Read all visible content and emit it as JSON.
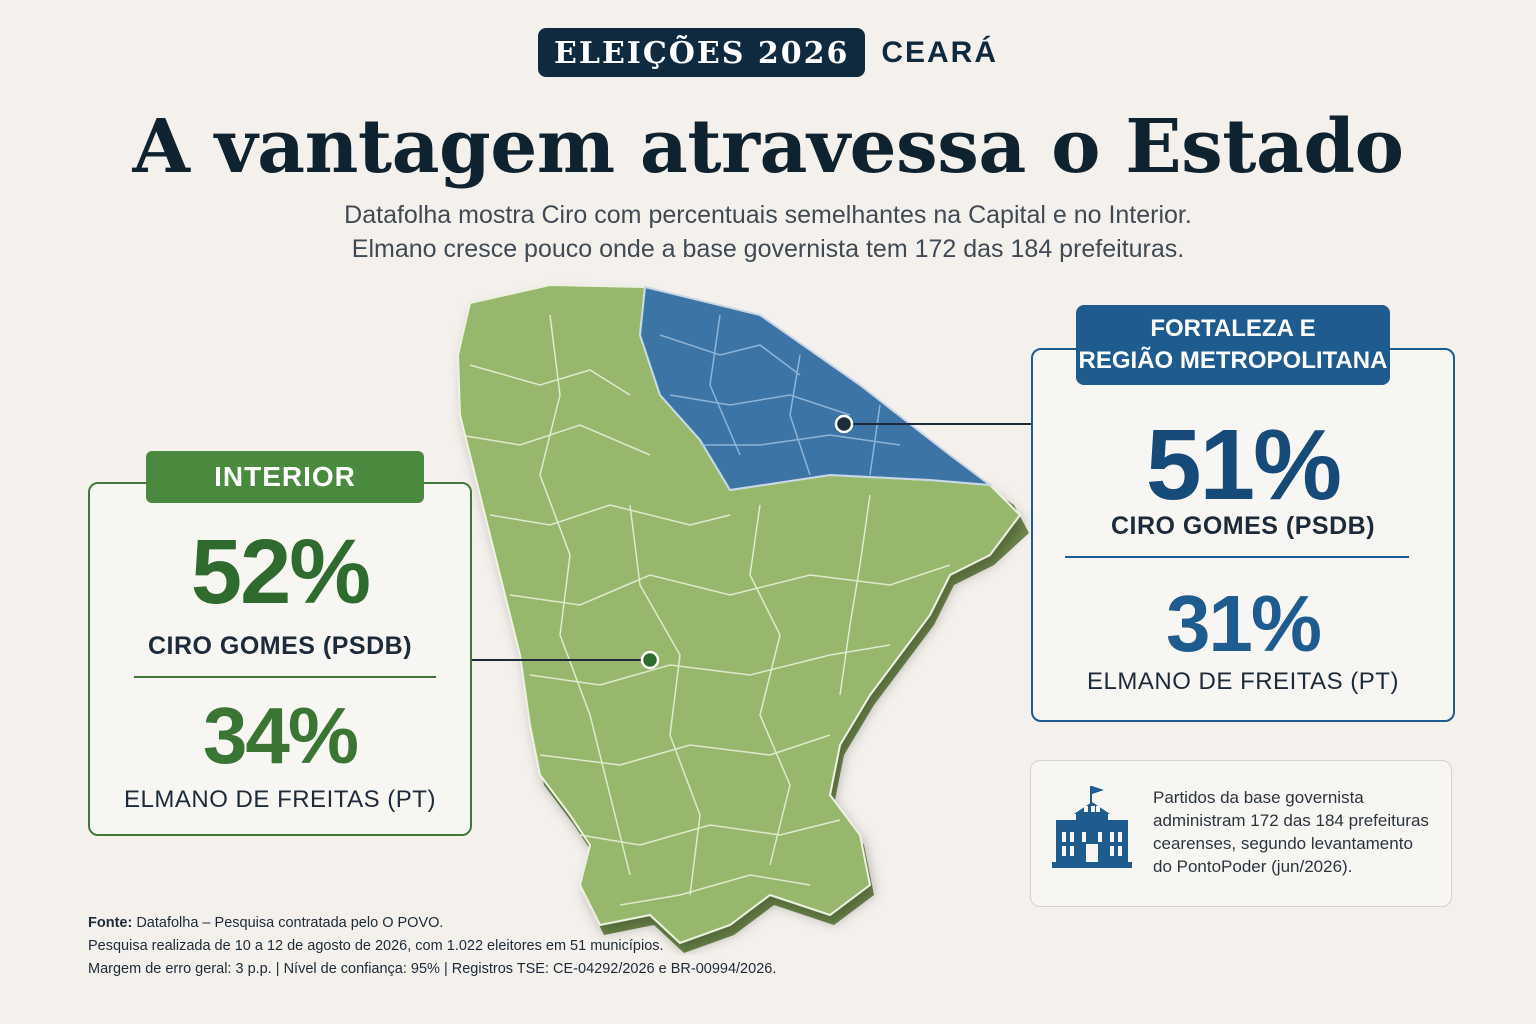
{
  "header": {
    "badge": "ELEIÇÕES 2026",
    "region": "CEARÁ",
    "title": "A vantagem atravessa o Estado",
    "subtitle_line1": "Datafolha mostra Ciro com percentuais semelhantes na Capital e no Interior.",
    "subtitle_line2": "Elmano cresce pouco onde a base governista tem 172 das 184 prefeituras."
  },
  "map": {
    "colors": {
      "interior": "#95b56b",
      "metro": "#3f75a8",
      "border": "#e8eddc"
    }
  },
  "interior": {
    "label": "INTERIOR",
    "candidates": [
      {
        "percent": "52%",
        "name": "CIRO GOMES (PSDB)"
      },
      {
        "percent": "34%",
        "name": "ELMANO DE FREITAS (PT)"
      }
    ]
  },
  "metro": {
    "label_line1": "FORTALEZA E",
    "label_line2": "REGIÃO METROPOLITANA",
    "candidates": [
      {
        "percent": "51%",
        "name": "CIRO GOMES (PSDB)"
      },
      {
        "percent": "31%",
        "name": "ELMANO DE FREITAS (PT)"
      }
    ]
  },
  "note": {
    "icon": "city-hall-icon",
    "line1": "Partidos da base governista",
    "line2": "administram 172 das 184 prefeituras",
    "line3": "cearenses, segundo levantamento",
    "line4": "do PontoPoder (jun/2026)."
  },
  "source": {
    "label": "Fonte:",
    "line1": " Datafolha – Pesquisa contratada pelo O POVO.",
    "line2": "Pesquisa realizada de 10 a 12 de agosto de 2026, com 1.022 eleitores em 51 municípios.",
    "line3": "Margem de erro geral: 3 p.p. | Nível de confiança: 95% | Registros TSE: CE-04292/2026 e BR-00994/2026."
  }
}
